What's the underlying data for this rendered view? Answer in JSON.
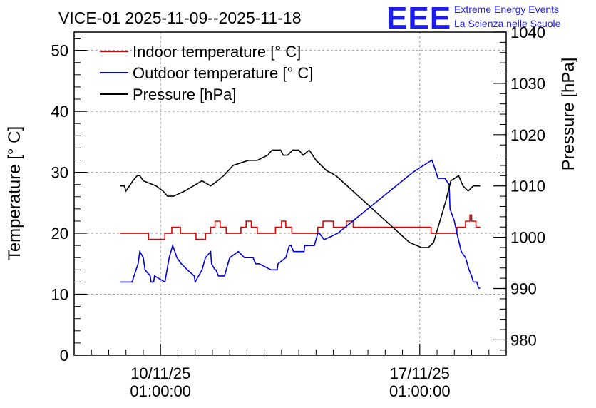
{
  "chart_data": {
    "type": "line",
    "title": "VICE-01 2025-11-09--2025-11-18",
    "ylabel": "Temperature [° C]",
    "y2label": "Pressure [hPa]",
    "xlabel": "",
    "ylim": [
      0,
      53
    ],
    "y2lim": [
      977,
      1040
    ],
    "xlim": [
      -1.0,
      4.0
    ],
    "grid": true,
    "legend_position": "top-left",
    "yticks": [
      0,
      10,
      20,
      30,
      40,
      50
    ],
    "y2ticks": [
      980,
      990,
      1000,
      1010,
      1020,
      1030,
      1040
    ],
    "xticks": [
      {
        "x": 0,
        "line1": "10/11/25",
        "line2": "01:00:00"
      },
      {
        "x": 3,
        "line1": "17/11/25",
        "line2": "01:00:00"
      }
    ],
    "logo": {
      "mark": "EEE",
      "line1": "Extreme Energy Events",
      "line2": "La Scienza nelle Scuole"
    },
    "series": [
      {
        "name": "Indoor temperature [° C]",
        "color": "#e00000",
        "axis": "left",
        "x": [
          -0.47,
          -0.14,
          -0.14,
          0.05,
          0.05,
          0.13,
          0.13,
          0.23,
          0.23,
          0.41,
          0.41,
          0.52,
          0.52,
          0.58,
          0.58,
          0.63,
          0.63,
          0.69,
          0.69,
          0.76,
          0.76,
          0.93,
          0.93,
          0.99,
          0.99,
          1.05,
          1.05,
          1.12,
          1.12,
          1.33,
          1.33,
          1.4,
          1.4,
          1.45,
          1.45,
          1.52,
          1.52,
          1.82,
          1.82,
          1.88,
          1.88,
          2.0,
          2.0,
          2.15,
          2.15,
          2.23,
          2.23,
          3.13,
          3.13,
          3.43,
          3.43,
          3.53,
          3.53,
          3.58,
          3.58,
          3.6,
          3.6,
          3.65,
          3.65,
          3.7
        ],
        "values": [
          20,
          20,
          19,
          19,
          20,
          20,
          21,
          21,
          20,
          20,
          19,
          19,
          20,
          20,
          21,
          21,
          22,
          22,
          21,
          21,
          20,
          20,
          21,
          21,
          22,
          22,
          21,
          21,
          20,
          20,
          21,
          21,
          22,
          22,
          21,
          21,
          20,
          20,
          21,
          21,
          22,
          22,
          21,
          21,
          22,
          22,
          21,
          21,
          20,
          20,
          21,
          21,
          22,
          22,
          23,
          23,
          22,
          22,
          21,
          21
        ]
      },
      {
        "name": "Outdoor temperature [° C]",
        "color": "#0000dd",
        "axis": "left",
        "x": [
          -0.47,
          -0.33,
          -0.26,
          -0.24,
          -0.2,
          -0.18,
          -0.12,
          -0.11,
          -0.08,
          -0.07,
          0.05,
          0.05,
          0.1,
          0.14,
          0.19,
          0.24,
          0.31,
          0.39,
          0.4,
          0.48,
          0.52,
          0.58,
          0.59,
          0.63,
          0.64,
          0.67,
          0.68,
          0.74,
          0.8,
          0.9,
          0.97,
          1.07,
          1.1,
          1.14,
          1.28,
          1.35,
          1.36,
          1.45,
          1.49,
          1.51,
          1.54,
          1.55,
          1.66,
          1.67,
          1.78,
          1.82,
          1.84,
          1.89,
          1.9,
          2.05,
          2.92,
          3.14,
          3.19,
          3.21,
          3.23,
          3.29,
          3.34,
          3.35,
          3.4,
          3.43,
          3.48,
          3.53,
          3.57,
          3.6,
          3.62,
          3.66,
          3.68,
          3.7
        ],
        "values": [
          12,
          12,
          15,
          17,
          16,
          14,
          13,
          12,
          12,
          13,
          12,
          12,
          16,
          18,
          16,
          15,
          14,
          13,
          12,
          14,
          16,
          17,
          15,
          14,
          14,
          13,
          13,
          13,
          16,
          17,
          16,
          16,
          15,
          15,
          14,
          14,
          15,
          16,
          18,
          18,
          17,
          17,
          17,
          18,
          18,
          20,
          20,
          19,
          19,
          20,
          30,
          32,
          30,
          29,
          29,
          29,
          28,
          24,
          22,
          20,
          17,
          16,
          14,
          13,
          12,
          12,
          11,
          11
        ]
      },
      {
        "name": "Pressure [hPa]",
        "color": "#000000",
        "axis": "right",
        "x": [
          -0.47,
          -0.42,
          -0.4,
          -0.36,
          -0.32,
          -0.27,
          -0.24,
          -0.2,
          -0.05,
          0.03,
          0.08,
          0.15,
          0.28,
          0.38,
          0.48,
          0.58,
          0.66,
          0.73,
          0.84,
          1.02,
          1.12,
          1.24,
          1.29,
          1.39,
          1.42,
          1.47,
          1.53,
          1.6,
          1.65,
          1.72,
          1.8,
          1.92,
          2.03,
          2.88,
          3.02,
          3.1,
          3.16,
          3.3,
          3.36,
          3.45,
          3.5,
          3.56,
          3.62,
          3.68,
          3.7
        ],
        "values": [
          1010,
          1010,
          1009,
          1010,
          1011,
          1012,
          1012,
          1011,
          1010,
          1009,
          1008,
          1008,
          1009,
          1010,
          1011,
          1010,
          1011,
          1012,
          1014,
          1015,
          1015,
          1016,
          1017,
          1017,
          1016,
          1016,
          1017,
          1017,
          1016,
          1017,
          1015,
          1013,
          1012,
          999,
          998,
          998,
          999,
          1007,
          1011,
          1012,
          1010,
          1009,
          1010,
          1010,
          1010
        ]
      }
    ]
  }
}
